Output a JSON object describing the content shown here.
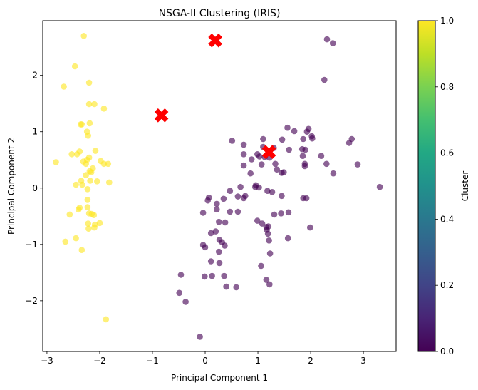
{
  "chart_data": {
    "type": "scatter",
    "title": "NSGA-II Clustering (IRIS)",
    "xlabel": "Principal Component 1",
    "ylabel": "Principal Component 2",
    "xlim": [
      -3.08,
      3.62
    ],
    "ylim": [
      -2.9,
      2.97
    ],
    "xticks": [
      -3,
      -2,
      -1,
      0,
      1,
      2,
      3
    ],
    "yticks": [
      -2,
      -1,
      0,
      1,
      2
    ],
    "grid": false,
    "colors": {
      "cluster0": "#440154",
      "cluster1": "#fde725",
      "centroid": "#ff0000"
    },
    "colorbar": {
      "label": "Cluster",
      "range": [
        0,
        1
      ],
      "ticks": [
        "0.0",
        "0.2",
        "0.4",
        "0.6",
        "0.8",
        "1.0"
      ]
    },
    "series": [
      {
        "cluster": 1,
        "points": [
          [
            -2.3,
            2.7
          ],
          [
            -2.47,
            2.16
          ],
          [
            -2.68,
            1.8
          ],
          [
            -2.2,
            1.87
          ],
          [
            -2.2,
            1.49
          ],
          [
            -2.1,
            1.49
          ],
          [
            -1.92,
            1.41
          ],
          [
            -2.36,
            1.13
          ],
          [
            -2.34,
            1.13
          ],
          [
            -2.19,
            1.15
          ],
          [
            -2.24,
            1.0
          ],
          [
            -2.22,
            0.93
          ],
          [
            -2.08,
            0.66
          ],
          [
            -2.38,
            0.65
          ],
          [
            -2.53,
            0.6
          ],
          [
            -2.43,
            0.6
          ],
          [
            -2.2,
            0.54
          ],
          [
            -2.24,
            0.5
          ],
          [
            -1.98,
            0.48
          ],
          [
            -1.92,
            0.43
          ],
          [
            -1.84,
            0.43
          ],
          [
            -2.26,
            0.43
          ],
          [
            -2.31,
            0.47
          ],
          [
            -2.13,
            0.35
          ],
          [
            -2.19,
            0.3
          ],
          [
            -2.83,
            0.46
          ],
          [
            -2.26,
            0.23
          ],
          [
            -2.16,
            0.28
          ],
          [
            -2.35,
            0.13
          ],
          [
            -2.18,
            0.13
          ],
          [
            -2.05,
            0.12
          ],
          [
            -2.45,
            0.06
          ],
          [
            -2.23,
            -0.02
          ],
          [
            -2.33,
            0.06
          ],
          [
            -1.82,
            0.1
          ],
          [
            -2.23,
            -0.21
          ],
          [
            -2.23,
            -0.34
          ],
          [
            -2.38,
            -0.35
          ],
          [
            -2.4,
            -0.38
          ],
          [
            -2.57,
            -0.47
          ],
          [
            -2.2,
            -0.45
          ],
          [
            -2.15,
            -0.46
          ],
          [
            -2.11,
            -0.48
          ],
          [
            -2.0,
            -0.62
          ],
          [
            -2.22,
            -0.63
          ],
          [
            -2.09,
            -0.65
          ],
          [
            -2.1,
            -0.7
          ],
          [
            -2.21,
            -0.72
          ],
          [
            -2.65,
            -0.95
          ],
          [
            -2.45,
            -0.89
          ],
          [
            -2.34,
            -1.1
          ],
          [
            -1.88,
            -2.33
          ]
        ]
      },
      {
        "cluster": 0,
        "points": [
          [
            2.31,
            2.64
          ],
          [
            2.42,
            2.57
          ],
          [
            2.26,
            1.92
          ],
          [
            1.56,
            1.07
          ],
          [
            1.69,
            1.01
          ],
          [
            1.96,
            1.05
          ],
          [
            1.93,
            1.0
          ],
          [
            2.02,
            0.92
          ],
          [
            2.03,
            0.88
          ],
          [
            1.86,
            0.87
          ],
          [
            1.46,
            0.86
          ],
          [
            1.1,
            0.87
          ],
          [
            2.78,
            0.87
          ],
          [
            2.73,
            0.8
          ],
          [
            0.51,
            0.84
          ],
          [
            0.73,
            0.77
          ],
          [
            1.1,
            0.73
          ],
          [
            1.3,
            0.71
          ],
          [
            1.59,
            0.68
          ],
          [
            1.84,
            0.69
          ],
          [
            1.9,
            0.68
          ],
          [
            1.85,
            0.57
          ],
          [
            2.2,
            0.57
          ],
          [
            0.73,
            0.6
          ],
          [
            0.99,
            0.6
          ],
          [
            1.13,
            0.55
          ],
          [
            0.88,
            0.51
          ],
          [
            1.03,
            0.56
          ],
          [
            1.22,
            0.54
          ],
          [
            1.33,
            0.43
          ],
          [
            1.89,
            0.43
          ],
          [
            1.89,
            0.39
          ],
          [
            2.3,
            0.43
          ],
          [
            2.89,
            0.42
          ],
          [
            0.73,
            0.4
          ],
          [
            1.07,
            0.42
          ],
          [
            1.36,
            0.33
          ],
          [
            1.45,
            0.27
          ],
          [
            1.49,
            0.28
          ],
          [
            2.43,
            0.26
          ],
          [
            0.86,
            0.26
          ],
          [
            0.67,
            0.02
          ],
          [
            0.95,
            0.02
          ],
          [
            0.96,
            0.05
          ],
          [
            1.02,
            0.01
          ],
          [
            1.18,
            -0.05
          ],
          [
            0.47,
            -0.05
          ],
          [
            0.62,
            -0.15
          ],
          [
            0.73,
            -0.18
          ],
          [
            0.76,
            -0.14
          ],
          [
            1.27,
            -0.07
          ],
          [
            1.45,
            -0.14
          ],
          [
            1.86,
            -0.18
          ],
          [
            1.92,
            -0.18
          ],
          [
            3.31,
            0.02
          ],
          [
            0.07,
            -0.17
          ],
          [
            0.05,
            -0.22
          ],
          [
            0.22,
            -0.28
          ],
          [
            0.35,
            -0.19
          ],
          [
            0.22,
            -0.38
          ],
          [
            0.47,
            -0.42
          ],
          [
            0.62,
            -0.42
          ],
          [
            1.31,
            -0.47
          ],
          [
            1.44,
            -0.45
          ],
          [
            1.58,
            -0.43
          ],
          [
            -0.04,
            -0.44
          ],
          [
            0.26,
            -0.6
          ],
          [
            0.38,
            -0.61
          ],
          [
            0.99,
            -0.58
          ],
          [
            1.08,
            -0.63
          ],
          [
            1.16,
            -0.69
          ],
          [
            1.17,
            -0.74
          ],
          [
            1.2,
            -0.68
          ],
          [
            1.99,
            -0.7
          ],
          [
            0.11,
            -0.8
          ],
          [
            0.2,
            -0.77
          ],
          [
            1.19,
            -0.81
          ],
          [
            1.21,
            -0.93
          ],
          [
            1.57,
            -0.89
          ],
          [
            0.27,
            -0.92
          ],
          [
            0.32,
            -0.96
          ],
          [
            0.37,
            -1.02
          ],
          [
            0.0,
            -1.05
          ],
          [
            -0.04,
            -1.01
          ],
          [
            0.26,
            -1.13
          ],
          [
            1.23,
            -1.16
          ],
          [
            0.11,
            -1.3
          ],
          [
            0.27,
            -1.33
          ],
          [
            1.06,
            -1.38
          ],
          [
            1.16,
            -1.63
          ],
          [
            1.22,
            -1.71
          ],
          [
            -0.01,
            -1.57
          ],
          [
            0.13,
            -1.56
          ],
          [
            0.36,
            -1.56
          ],
          [
            0.4,
            -1.75
          ],
          [
            0.59,
            -1.76
          ],
          [
            -0.46,
            -1.54
          ],
          [
            -0.49,
            -1.86
          ],
          [
            -0.37,
            -2.02
          ],
          [
            -0.1,
            -2.64
          ]
        ]
      }
    ],
    "centroids": [
      [
        0.19,
        2.62
      ],
      [
        -0.83,
        1.29
      ],
      [
        1.21,
        0.64
      ]
    ]
  }
}
